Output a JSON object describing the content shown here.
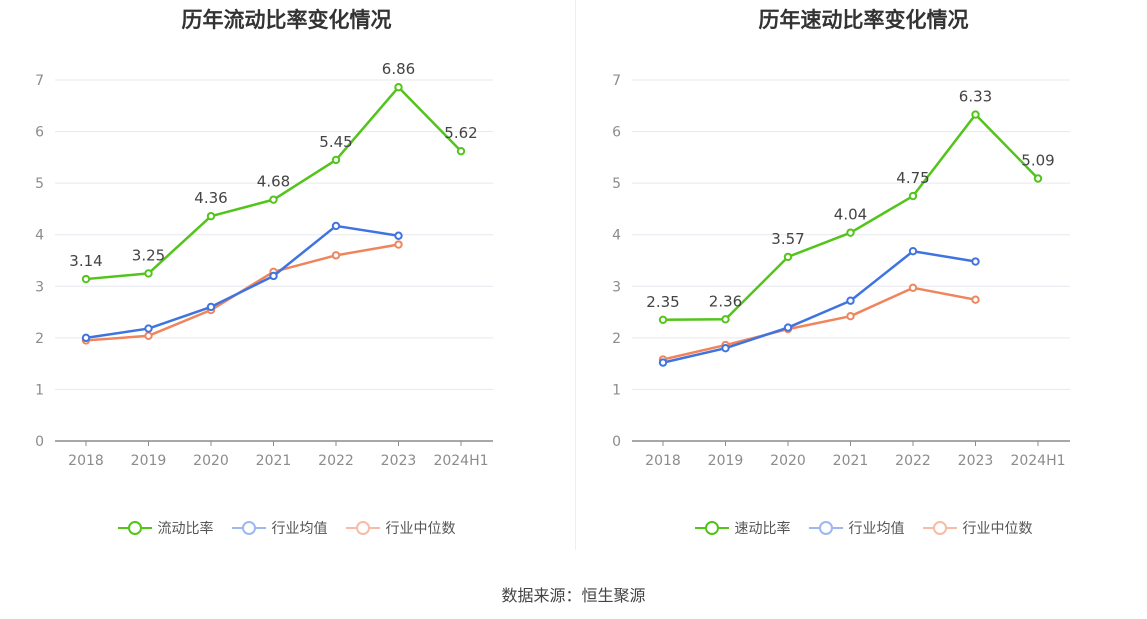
{
  "source_text": "数据来源：恒生聚源",
  "chart_data": [
    {
      "type": "line",
      "title": "历年流动比率变化情况",
      "categories": [
        "2018",
        "2019",
        "2020",
        "2021",
        "2022",
        "2023",
        "2024H1"
      ],
      "ylim": [
        0,
        7
      ],
      "yticks": [
        "0",
        "1",
        "2",
        "3",
        "4",
        "5",
        "6",
        "7"
      ],
      "grid": true,
      "legend_position": "bottom",
      "series": [
        {
          "name": "流动比率",
          "color": "#52c41a",
          "values": [
            3.14,
            3.25,
            4.36,
            4.68,
            5.45,
            6.86,
            5.62
          ],
          "labels": [
            "3.14",
            "3.25",
            "4.36",
            "4.68",
            "5.45",
            "6.86",
            "5.62"
          ]
        },
        {
          "name": "行业均值",
          "color": "#3f74e0",
          "values": [
            2.0,
            2.18,
            2.6,
            3.2,
            4.17,
            3.98,
            null
          ]
        },
        {
          "name": "行业中位数",
          "color": "#f0845c",
          "values": [
            1.95,
            2.04,
            2.54,
            3.28,
            3.6,
            3.81,
            null
          ]
        }
      ]
    },
    {
      "type": "line",
      "title": "历年速动比率变化情况",
      "categories": [
        "2018",
        "2019",
        "2020",
        "2021",
        "2022",
        "2023",
        "2024H1"
      ],
      "ylim": [
        0,
        7
      ],
      "yticks": [
        "0",
        "1",
        "2",
        "3",
        "4",
        "5",
        "6",
        "7"
      ],
      "grid": true,
      "legend_position": "bottom",
      "series": [
        {
          "name": "速动比率",
          "color": "#52c41a",
          "values": [
            2.35,
            2.36,
            3.57,
            4.04,
            4.75,
            6.33,
            5.09
          ],
          "labels": [
            "2.35",
            "2.36",
            "3.57",
            "4.04",
            "4.75",
            "6.33",
            "5.09"
          ]
        },
        {
          "name": "行业均值",
          "color": "#3f74e0",
          "values": [
            1.52,
            1.8,
            2.2,
            2.72,
            3.68,
            3.48,
            null
          ]
        },
        {
          "name": "行业中位数",
          "color": "#f0845c",
          "values": [
            1.58,
            1.86,
            2.17,
            2.42,
            2.97,
            2.74,
            null
          ]
        }
      ]
    }
  ]
}
